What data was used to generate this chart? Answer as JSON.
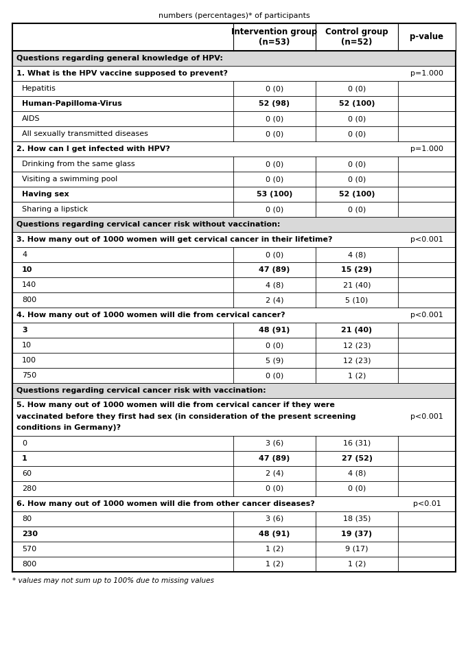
{
  "title_line": "numbers (percentages)* of participants",
  "col_headers": [
    {
      "text": "Intervention group\n(n=53)"
    },
    {
      "text": "Control group\n(n=52)"
    },
    {
      "text": "p-value"
    }
  ],
  "rows": [
    {
      "type": "section",
      "text": "Questions regarding general knowledge of HPV:",
      "pval": ""
    },
    {
      "type": "question",
      "text": "1. What is the HPV vaccine supposed to prevent?",
      "pval": "p=1.000"
    },
    {
      "type": "data",
      "label": "Hepatitis",
      "bold_label": false,
      "int_val": "0 (0)",
      "ctrl_val": "0 (0)",
      "bold_vals": false
    },
    {
      "type": "data",
      "label": "Human-Papilloma-Virus",
      "bold_label": true,
      "int_val": "52 (98)",
      "ctrl_val": "52 (100)",
      "bold_vals": true
    },
    {
      "type": "data",
      "label": "AIDS",
      "bold_label": false,
      "int_val": "0 (0)",
      "ctrl_val": "0 (0)",
      "bold_vals": false
    },
    {
      "type": "data",
      "label": "All sexually transmitted diseases",
      "bold_label": false,
      "int_val": "0 (0)",
      "ctrl_val": "0 (0)",
      "bold_vals": false
    },
    {
      "type": "question",
      "text": "2. How can I get infected with HPV?",
      "pval": "p=1.000"
    },
    {
      "type": "data",
      "label": "Drinking from the same glass",
      "bold_label": false,
      "int_val": "0 (0)",
      "ctrl_val": "0 (0)",
      "bold_vals": false
    },
    {
      "type": "data",
      "label": "Visiting a swimming pool",
      "bold_label": false,
      "int_val": "0 (0)",
      "ctrl_val": "0 (0)",
      "bold_vals": false
    },
    {
      "type": "data",
      "label": "Having sex",
      "bold_label": true,
      "int_val": "53 (100)",
      "ctrl_val": "52 (100)",
      "bold_vals": true
    },
    {
      "type": "data",
      "label": "Sharing a lipstick",
      "bold_label": false,
      "int_val": "0 (0)",
      "ctrl_val": "0 (0)",
      "bold_vals": false
    },
    {
      "type": "section",
      "text": "Questions regarding cervical cancer risk without vaccination:",
      "pval": ""
    },
    {
      "type": "question",
      "text": "3. How many out of 1000 women will get cervical cancer in their lifetime?",
      "pval": "p<0.001"
    },
    {
      "type": "data",
      "label": "4",
      "bold_label": false,
      "int_val": "0 (0)",
      "ctrl_val": "4 (8)",
      "bold_vals": false
    },
    {
      "type": "data",
      "label": "10",
      "bold_label": true,
      "int_val": "47 (89)",
      "ctrl_val": "15 (29)",
      "bold_vals": true
    },
    {
      "type": "data",
      "label": "140",
      "bold_label": false,
      "int_val": "4 (8)",
      "ctrl_val": "21 (40)",
      "bold_vals": false
    },
    {
      "type": "data",
      "label": "800",
      "bold_label": false,
      "int_val": "2 (4)",
      "ctrl_val": "5 (10)",
      "bold_vals": false
    },
    {
      "type": "question",
      "text": "4. How many out of 1000 women will die from cervical cancer?",
      "pval": "p<0.001"
    },
    {
      "type": "data",
      "label": "3",
      "bold_label": true,
      "int_val": "48 (91)",
      "ctrl_val": "21 (40)",
      "bold_vals": true
    },
    {
      "type": "data",
      "label": "10",
      "bold_label": false,
      "int_val": "0 (0)",
      "ctrl_val": "12 (23)",
      "bold_vals": false
    },
    {
      "type": "data",
      "label": "100",
      "bold_label": false,
      "int_val": "5 (9)",
      "ctrl_val": "12 (23)",
      "bold_vals": false
    },
    {
      "type": "data",
      "label": "750",
      "bold_label": false,
      "int_val": "0 (0)",
      "ctrl_val": "1 (2)",
      "bold_vals": false
    },
    {
      "type": "section",
      "text": "Questions regarding cervical cancer risk with vaccination:",
      "pval": ""
    },
    {
      "type": "question_ml",
      "text": "5. How many out of 1000 women will die from cervical cancer if they were vaccinated before they first had sex (in consideration of the present screening conditions in Germany)?",
      "pval": "p<0.001"
    },
    {
      "type": "data",
      "label": "0",
      "bold_label": false,
      "int_val": "3 (6)",
      "ctrl_val": "16 (31)",
      "bold_vals": false
    },
    {
      "type": "data",
      "label": "1",
      "bold_label": true,
      "int_val": "47 (89)",
      "ctrl_val": "27 (52)",
      "bold_vals": true
    },
    {
      "type": "data",
      "label": "60",
      "bold_label": false,
      "int_val": "2 (4)",
      "ctrl_val": "4 (8)",
      "bold_vals": false
    },
    {
      "type": "data",
      "label": "280",
      "bold_label": false,
      "int_val": "0 (0)",
      "ctrl_val": "0 (0)",
      "bold_vals": false
    },
    {
      "type": "question",
      "text": "6. How many out of 1000 women will die from other cancer diseases?",
      "pval": "p<0.01"
    },
    {
      "type": "data",
      "label": "80",
      "bold_label": false,
      "int_val": "3 (6)",
      "ctrl_val": "18 (35)",
      "bold_vals": false
    },
    {
      "type": "data",
      "label": "230",
      "bold_label": true,
      "int_val": "48 (91)",
      "ctrl_val": "19 (37)",
      "bold_vals": true
    },
    {
      "type": "data",
      "label": "570",
      "bold_label": false,
      "int_val": "1 (2)",
      "ctrl_val": "9 (17)",
      "bold_vals": false
    },
    {
      "type": "data",
      "label": "800",
      "bold_label": false,
      "int_val": "1 (2)",
      "ctrl_val": "1 (2)",
      "bold_vals": false
    }
  ],
  "footnote": "* values may not sum up to 100% due to missing values",
  "section_bg": "#d9d9d9",
  "row_bg": "#ffffff",
  "text_color": "#000000",
  "font_size": 8.0,
  "header_font_size": 8.5
}
